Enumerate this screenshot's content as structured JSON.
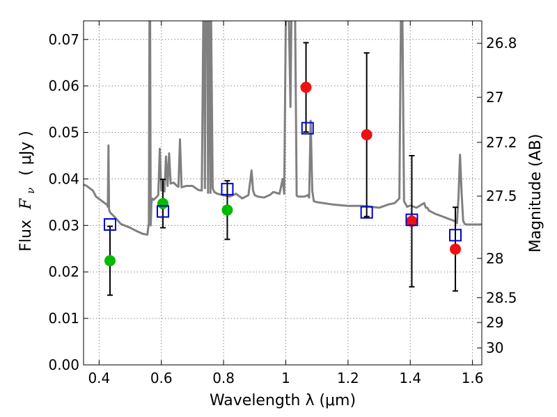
{
  "chart_data": {
    "type": "scatter",
    "xlabel": "Wavelength  λ (μm)",
    "ylabel_text": "Flux",
    "ylabel_symbol": "F",
    "ylabel_subscript": "ν",
    "ylabel_unit": "( μJy )",
    "y2label": "Magnitude (AB)",
    "xlim": [
      0.35,
      1.63
    ],
    "ylim": [
      0.0,
      0.074
    ],
    "grid": true,
    "legend": "none",
    "x_ticks": [
      0.4,
      0.6,
      0.8,
      1.0,
      1.2,
      1.4,
      1.6
    ],
    "x_tick_labels": [
      "0.4",
      "0.6",
      "0.8",
      "1",
      "1.2",
      "1.4",
      "1.6"
    ],
    "y_ticks": [
      0.0,
      0.01,
      0.02,
      0.03,
      0.04,
      0.05,
      0.06,
      0.07
    ],
    "y_tick_labels": [
      "0.00",
      "0.01",
      "0.02",
      "0.03",
      "0.04",
      "0.05",
      "0.06",
      "0.07"
    ],
    "y2_ticks": [
      26.8,
      27,
      27.2,
      27.5,
      28,
      28.5,
      29,
      30
    ],
    "y2_tick_labels": [
      "26.8",
      "27",
      "27.2",
      "27.5",
      "28",
      "28.5",
      "29",
      "30"
    ],
    "y2_zero_point_ab": 23.9,
    "colors": {
      "spectrum": "#808080",
      "green": "#00bb00",
      "red": "#ee1111",
      "model": "#0000cc",
      "errorbar": "#000000",
      "grid": "#888888"
    },
    "spectrum": {
      "name": "",
      "x": [
        0.35,
        0.36,
        0.37,
        0.38,
        0.39,
        0.4,
        0.41,
        0.42,
        0.425,
        0.428,
        0.43,
        0.432,
        0.435,
        0.45,
        0.47,
        0.5,
        0.52,
        0.54,
        0.555,
        0.56,
        0.562,
        0.564,
        0.566,
        0.568,
        0.57,
        0.575,
        0.58,
        0.59,
        0.595,
        0.6,
        0.605,
        0.61,
        0.615,
        0.62,
        0.625,
        0.63,
        0.64,
        0.65,
        0.655,
        0.66,
        0.665,
        0.67,
        0.68,
        0.7,
        0.72,
        0.73,
        0.735,
        0.738,
        0.74,
        0.742,
        0.745,
        0.748,
        0.75,
        0.752,
        0.755,
        0.758,
        0.76,
        0.765,
        0.77,
        0.78,
        0.8,
        0.82,
        0.84,
        0.86,
        0.88,
        0.89,
        0.895,
        0.9,
        0.91,
        0.93,
        0.95,
        0.96,
        0.97,
        0.98,
        0.99,
        0.995,
        1.0,
        1.003,
        1.006,
        1.01,
        1.015,
        1.018,
        1.02,
        1.025,
        1.03,
        1.035,
        1.04,
        1.06,
        1.07,
        1.075,
        1.08,
        1.085,
        1.09,
        1.1,
        1.15,
        1.2,
        1.25,
        1.3,
        1.33,
        1.35,
        1.365,
        1.37,
        1.375,
        1.38,
        1.39,
        1.4,
        1.42,
        1.445,
        1.45,
        1.455,
        1.46,
        1.48,
        1.5,
        1.52,
        1.54,
        1.55,
        1.555,
        1.56,
        1.565,
        1.57,
        1.575,
        1.58,
        1.6,
        1.63
      ],
      "y": [
        0.0388,
        0.0385,
        0.038,
        0.0375,
        0.0362,
        0.0357,
        0.0352,
        0.0347,
        0.0345,
        0.034,
        0.0472,
        0.0335,
        0.0328,
        0.0318,
        0.0303,
        0.0295,
        0.0288,
        0.0282,
        0.028,
        0.0305,
        0.0745,
        0.0745,
        0.03,
        0.0345,
        0.0358,
        0.0355,
        0.0358,
        0.0365,
        0.0465,
        0.0375,
        0.0395,
        0.0373,
        0.0448,
        0.0385,
        0.0455,
        0.039,
        0.0392,
        0.0385,
        0.0383,
        0.0485,
        0.0382,
        0.0383,
        0.0385,
        0.0385,
        0.0376,
        0.0375,
        0.074,
        0.0745,
        0.038,
        0.074,
        0.074,
        0.0745,
        0.037,
        0.0745,
        0.0745,
        0.037,
        0.0745,
        0.038,
        0.0372,
        0.0368,
        0.0365,
        0.0362,
        0.0368,
        0.0358,
        0.0365,
        0.0418,
        0.0375,
        0.0365,
        0.0362,
        0.036,
        0.0366,
        0.0372,
        0.037,
        0.0368,
        0.04,
        0.0368,
        0.0745,
        0.074,
        0.0745,
        0.0745,
        0.0555,
        0.0745,
        0.0745,
        0.0745,
        0.0742,
        0.0364,
        0.0362,
        0.0362,
        0.0365,
        0.036,
        0.0525,
        0.0375,
        0.0352,
        0.035,
        0.0345,
        0.0342,
        0.0342,
        0.0338,
        0.0345,
        0.0348,
        0.0358,
        0.074,
        0.0745,
        0.0352,
        0.034,
        0.0343,
        0.0338,
        0.0348,
        0.0338,
        0.0338,
        0.0332,
        0.0325,
        0.032,
        0.0315,
        0.031,
        0.0305,
        0.036,
        0.0452,
        0.037,
        0.031,
        0.0303,
        0.0302,
        0.0302,
        0.0302
      ]
    },
    "observed": [
      {
        "x": 0.435,
        "y": 0.0224,
        "yerr": 0.0074,
        "color": "green"
      },
      {
        "x": 0.605,
        "y": 0.0347,
        "yerr": 0.0052,
        "color": "green"
      },
      {
        "x": 0.812,
        "y": 0.0333,
        "yerr": 0.0063,
        "color": "green"
      },
      {
        "x": 1.065,
        "y": 0.0597,
        "yerr": 0.0096,
        "color": "red"
      },
      {
        "x": 1.26,
        "y": 0.0495,
        "yerr": 0.0176,
        "color": "red"
      },
      {
        "x": 1.405,
        "y": 0.0309,
        "yerr": 0.0141,
        "color": "red"
      },
      {
        "x": 1.545,
        "y": 0.0249,
        "yerr": 0.009,
        "color": "red"
      }
    ],
    "model": [
      {
        "x": 0.435,
        "y": 0.0302
      },
      {
        "x": 0.605,
        "y": 0.033
      },
      {
        "x": 0.812,
        "y": 0.0378
      },
      {
        "x": 1.07,
        "y": 0.0509
      },
      {
        "x": 1.26,
        "y": 0.0328
      },
      {
        "x": 1.405,
        "y": 0.0312
      },
      {
        "x": 1.545,
        "y": 0.0279
      }
    ]
  }
}
